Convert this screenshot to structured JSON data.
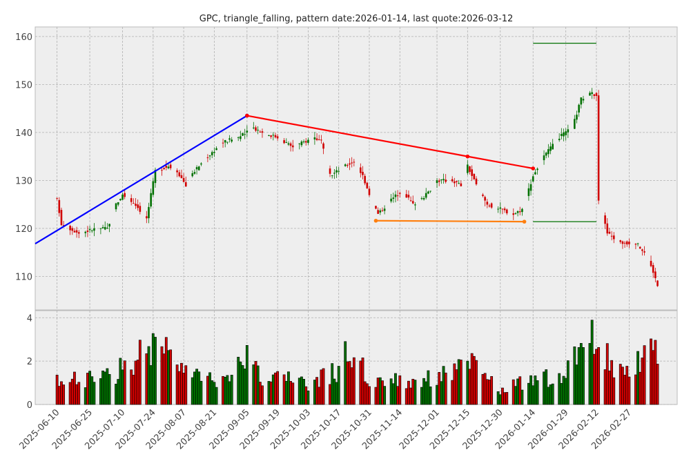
{
  "chart_data": {
    "type": "candlestick",
    "title": "GPC, triangle_falling, pattern date:2026-01-14, last quote:2026-03-12",
    "price_ylim": [
      103,
      162
    ],
    "price_yticks": [
      110,
      120,
      130,
      140,
      150,
      160
    ],
    "volume_ylim": [
      0,
      4.2
    ],
    "volume_yticks": [
      0,
      2,
      4
    ],
    "x_range": [
      "2025-05-31",
      "2026-03-21"
    ],
    "x_ticks": [
      "2025-06-10",
      "2025-06-25",
      "2025-07-10",
      "2025-07-24",
      "2025-08-07",
      "2025-08-21",
      "2025-09-05",
      "2025-09-19",
      "2025-10-03",
      "2025-10-17",
      "2025-10-31",
      "2025-11-14",
      "2025-12-01",
      "2025-12-15",
      "2025-12-30",
      "2026-01-14",
      "2026-01-29",
      "2026-02-12",
      "2026-02-27"
    ],
    "grid": true,
    "colors": {
      "up": "#007000",
      "down": "#d00000",
      "upper_line": "#ff0000",
      "lower_line": "#ff7f0e",
      "trend_line": "#0000ff",
      "target": "#007000",
      "panel_bg": "#eeeeee"
    },
    "trend_line": {
      "points": [
        [
          "2025-05-31",
          116.8
        ],
        [
          "2025-09-05",
          143.5
        ]
      ]
    },
    "upper_line": {
      "points": [
        [
          "2025-09-05",
          143.5
        ],
        [
          "2025-12-15",
          135.0
        ],
        [
          "2026-01-14",
          132.5
        ]
      ]
    },
    "lower_line": {
      "points": [
        [
          "2025-11-03",
          121.6
        ],
        [
          "2026-01-10",
          121.4
        ]
      ]
    },
    "target_lines": [
      {
        "level": 158.6,
        "x": [
          "2026-01-14",
          "2026-02-12"
        ]
      },
      {
        "level": 121.4,
        "x": [
          "2026-01-14",
          "2026-02-12"
        ]
      }
    ],
    "price_keypoints": [
      [
        "2025-06-10",
        126
      ],
      [
        "2025-06-12",
        121
      ],
      [
        "2025-06-20",
        119
      ],
      [
        "2025-06-28",
        120
      ],
      [
        "2025-07-03",
        120
      ],
      [
        "2025-07-07",
        125
      ],
      [
        "2025-07-10",
        127
      ],
      [
        "2025-07-16",
        125
      ],
      [
        "2025-07-21",
        122
      ],
      [
        "2025-07-25",
        132
      ],
      [
        "2025-07-31",
        133
      ],
      [
        "2025-08-04",
        132
      ],
      [
        "2025-08-08",
        129
      ],
      [
        "2025-08-12",
        132
      ],
      [
        "2025-08-18",
        135
      ],
      [
        "2025-08-25",
        138
      ],
      [
        "2025-09-01",
        139
      ],
      [
        "2025-09-05",
        140
      ],
      [
        "2025-09-08",
        141
      ],
      [
        "2025-09-12",
        140
      ],
      [
        "2025-09-19",
        139
      ],
      [
        "2025-09-26",
        137
      ],
      [
        "2025-10-01",
        138
      ],
      [
        "2025-10-06",
        139
      ],
      [
        "2025-10-09",
        138
      ],
      [
        "2025-10-13",
        131
      ],
      [
        "2025-10-20",
        133
      ],
      [
        "2025-10-24",
        134
      ],
      [
        "2025-10-28",
        131
      ],
      [
        "2025-11-01",
        126
      ],
      [
        "2025-11-04",
        123
      ],
      [
        "2025-11-10",
        126
      ],
      [
        "2025-11-15",
        128
      ],
      [
        "2025-11-20",
        125
      ],
      [
        "2025-11-26",
        127
      ],
      [
        "2025-12-01",
        130
      ],
      [
        "2025-12-08",
        130
      ],
      [
        "2025-12-12",
        129
      ],
      [
        "2025-12-15",
        133
      ],
      [
        "2025-12-19",
        129
      ],
      [
        "2025-12-24",
        125
      ],
      [
        "2025-12-30",
        124
      ],
      [
        "2026-01-05",
        123
      ],
      [
        "2026-01-09",
        124
      ],
      [
        "2026-01-14",
        131
      ],
      [
        "2026-01-19",
        135
      ],
      [
        "2026-01-26",
        139
      ],
      [
        "2026-02-01",
        141
      ],
      [
        "2026-02-05",
        147
      ],
      [
        "2026-02-09",
        148
      ],
      [
        "2026-02-12",
        148
      ],
      [
        "2026-02-13",
        126
      ],
      [
        "2026-02-17",
        119
      ],
      [
        "2026-02-23",
        117
      ],
      [
        "2026-03-02",
        117
      ],
      [
        "2026-03-06",
        115
      ],
      [
        "2026-03-10",
        111
      ],
      [
        "2026-03-12",
        108
      ]
    ],
    "volume_keypoints": [
      [
        "2025-06-10",
        1.1
      ],
      [
        "2025-06-25",
        1.2
      ],
      [
        "2025-07-08",
        1.6
      ],
      [
        "2025-07-24",
        3.0
      ],
      [
        "2025-08-05",
        1.8
      ],
      [
        "2025-08-21",
        1.1
      ],
      [
        "2025-09-05",
        2.5
      ],
      [
        "2025-09-10",
        1.4
      ],
      [
        "2025-09-19",
        1.3
      ],
      [
        "2025-10-03",
        1.0
      ],
      [
        "2025-10-17",
        1.6
      ],
      [
        "2025-10-20",
        2.8
      ],
      [
        "2025-10-31",
        1.3
      ],
      [
        "2025-11-14",
        1.1
      ],
      [
        "2025-12-01",
        1.3
      ],
      [
        "2025-12-15",
        2.0
      ],
      [
        "2025-12-30",
        0.7
      ],
      [
        "2026-01-14",
        1.2
      ],
      [
        "2026-01-29",
        1.4
      ],
      [
        "2026-02-12",
        3.8
      ],
      [
        "2026-02-17",
        2.2
      ],
      [
        "2026-02-27",
        1.3
      ],
      [
        "2026-03-11",
        3.3
      ],
      [
        "2026-03-12",
        3.1
      ]
    ]
  }
}
